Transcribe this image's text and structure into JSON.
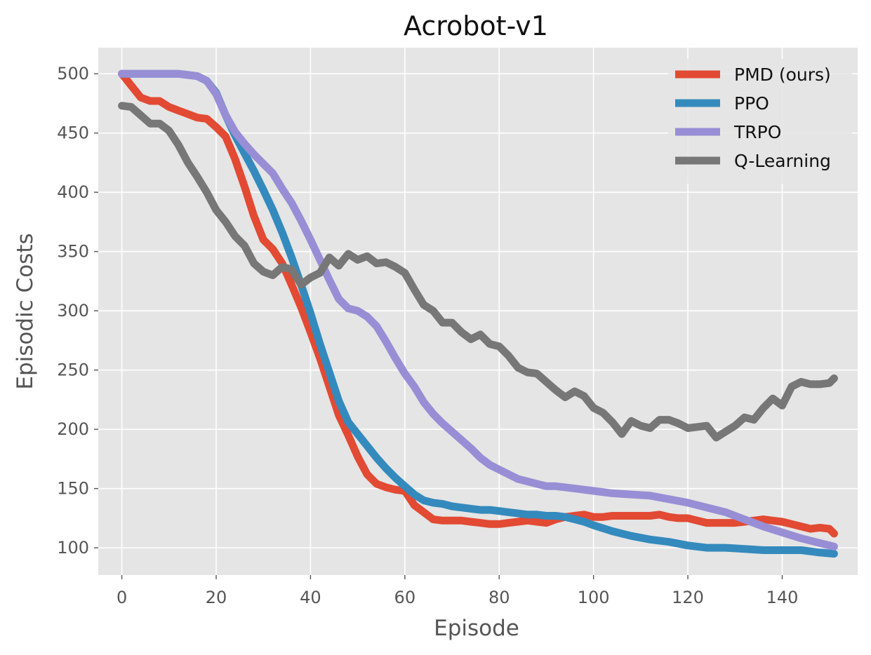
{
  "chart_data": {
    "type": "line",
    "title": "Acrobot-v1",
    "xlabel": "Episode",
    "ylabel": "Episodic Costs",
    "xlim": [
      -5,
      156
    ],
    "ylim": [
      77,
      522
    ],
    "xticks": [
      0,
      20,
      40,
      60,
      80,
      100,
      120,
      140
    ],
    "yticks": [
      100,
      150,
      200,
      250,
      300,
      350,
      400,
      450,
      500
    ],
    "grid": true,
    "legend": {
      "position": "top-right"
    },
    "colors": {
      "background": "#e5e5e5",
      "PMD (ours)": "#e24a33",
      "PPO": "#348abd",
      "TRPO": "#988ed5",
      "Q-Learning": "#777777"
    },
    "series": [
      {
        "name": "PMD (ours)",
        "x": [
          0,
          2,
          4,
          6,
          8,
          10,
          12,
          14,
          16,
          18,
          20,
          22,
          24,
          26,
          28,
          30,
          32,
          34,
          36,
          38,
          40,
          42,
          44,
          46,
          48,
          50,
          52,
          54,
          56,
          58,
          60,
          62,
          64,
          66,
          68,
          70,
          72,
          74,
          76,
          78,
          80,
          82,
          84,
          86,
          88,
          90,
          92,
          94,
          96,
          98,
          100,
          102,
          104,
          106,
          108,
          110,
          112,
          114,
          116,
          118,
          120,
          122,
          124,
          126,
          128,
          130,
          132,
          134,
          136,
          138,
          140,
          142,
          144,
          146,
          148,
          150,
          151
        ],
        "y": [
          500,
          490,
          480,
          477,
          477,
          472,
          469,
          466,
          463,
          462,
          455,
          447,
          428,
          405,
          380,
          360,
          352,
          340,
          322,
          303,
          282,
          260,
          236,
          212,
          195,
          177,
          162,
          154,
          151,
          149,
          148,
          136,
          130,
          124,
          123,
          123,
          123,
          122,
          121,
          120,
          120,
          121,
          122,
          123,
          122,
          121,
          124,
          126,
          127,
          128,
          126,
          126,
          127,
          127,
          127,
          127,
          127,
          128,
          126,
          125,
          125,
          123,
          121,
          121,
          121,
          121,
          122,
          123,
          124,
          123,
          122,
          120,
          118,
          116,
          117,
          116,
          112
        ]
      },
      {
        "name": "PPO",
        "x": [
          0,
          4,
          8,
          12,
          16,
          18,
          20,
          22,
          24,
          26,
          28,
          30,
          32,
          34,
          36,
          38,
          40,
          42,
          44,
          46,
          48,
          50,
          52,
          54,
          56,
          58,
          60,
          62,
          64,
          66,
          68,
          70,
          72,
          74,
          76,
          78,
          80,
          82,
          84,
          86,
          88,
          90,
          92,
          94,
          96,
          98,
          100,
          104,
          108,
          112,
          116,
          120,
          124,
          128,
          132,
          136,
          140,
          144,
          148,
          151
        ],
        "y": [
          500,
          500,
          500,
          500,
          498,
          494,
          484,
          465,
          448,
          433,
          418,
          402,
          385,
          366,
          345,
          322,
          298,
          272,
          248,
          224,
          206,
          196,
          186,
          176,
          167,
          159,
          152,
          145,
          140,
          138,
          137,
          135,
          134,
          133,
          132,
          132,
          131,
          130,
          129,
          128,
          128,
          127,
          127,
          126,
          124,
          122,
          119,
          114,
          110,
          107,
          105,
          102,
          100,
          100,
          99,
          98,
          98,
          98,
          96,
          95
        ]
      },
      {
        "name": "TRPO",
        "x": [
          0,
          4,
          8,
          12,
          16,
          18,
          20,
          22,
          24,
          26,
          28,
          30,
          32,
          34,
          36,
          38,
          40,
          42,
          44,
          46,
          48,
          50,
          52,
          54,
          56,
          58,
          60,
          62,
          64,
          66,
          68,
          70,
          72,
          74,
          76,
          78,
          80,
          82,
          84,
          86,
          88,
          90,
          92,
          94,
          96,
          98,
          100,
          104,
          108,
          112,
          116,
          120,
          124,
          128,
          132,
          136,
          140,
          144,
          148,
          151
        ],
        "y": [
          500,
          500,
          500,
          500,
          498,
          494,
          483,
          465,
          451,
          441,
          432,
          424,
          416,
          403,
          391,
          376,
          360,
          343,
          326,
          310,
          302,
          300,
          295,
          287,
          274,
          260,
          247,
          236,
          223,
          213,
          205,
          198,
          191,
          184,
          176,
          170,
          166,
          162,
          158,
          156,
          154,
          152,
          152,
          151,
          150,
          149,
          148,
          146,
          145,
          144,
          141,
          138,
          134,
          130,
          124,
          118,
          113,
          108,
          104,
          101
        ]
      },
      {
        "name": "Q-Learning",
        "x": [
          0,
          2,
          4,
          6,
          8,
          10,
          12,
          14,
          16,
          18,
          20,
          22,
          24,
          26,
          28,
          30,
          32,
          34,
          36,
          38,
          40,
          42,
          44,
          46,
          48,
          50,
          52,
          54,
          56,
          58,
          60,
          62,
          64,
          66,
          68,
          70,
          72,
          74,
          76,
          78,
          80,
          82,
          84,
          86,
          88,
          90,
          92,
          94,
          96,
          98,
          100,
          102,
          104,
          106,
          108,
          110,
          112,
          114,
          116,
          118,
          120,
          122,
          124,
          126,
          128,
          130,
          132,
          134,
          136,
          138,
          140,
          142,
          144,
          146,
          148,
          150,
          151
        ],
        "y": [
          473,
          472,
          465,
          458,
          458,
          452,
          440,
          425,
          413,
          400,
          385,
          375,
          363,
          355,
          340,
          333,
          330,
          337,
          335,
          322,
          328,
          332,
          345,
          338,
          348,
          343,
          346,
          340,
          341,
          337,
          332,
          318,
          305,
          300,
          290,
          290,
          282,
          276,
          280,
          272,
          270,
          262,
          252,
          248,
          247,
          240,
          233,
          227,
          232,
          228,
          218,
          214,
          206,
          196,
          207,
          203,
          201,
          208,
          208,
          205,
          201,
          202,
          203,
          193,
          198,
          203,
          210,
          208,
          218,
          226,
          220,
          236,
          240,
          238,
          238,
          239,
          243
        ]
      }
    ]
  }
}
